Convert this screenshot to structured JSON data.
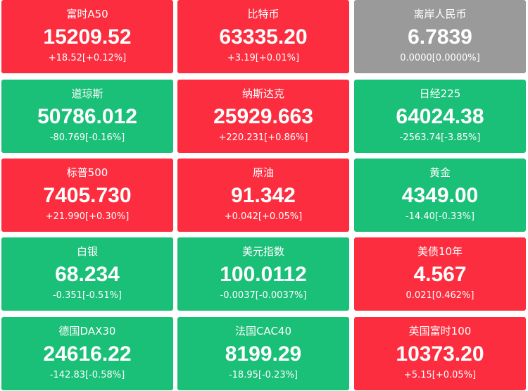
{
  "tiles": [
    {
      "name": "富时A50",
      "price": "15209.52",
      "change": "+18.52[+0.12%]",
      "color": "#fc2d3f"
    },
    {
      "name": "比特币",
      "price": "63335.20",
      "change": "+3.19[+0.01%]",
      "color": "#fc2d3f"
    },
    {
      "name": "离岸人民币",
      "price": "6.7839",
      "change": "0.0000[0.0000%]",
      "color": "#9a9a9a"
    },
    {
      "name": "道琼斯",
      "price": "50786.012",
      "change": "-80.769[-0.16%]",
      "color": "#1abf78"
    },
    {
      "name": "纳斯达克",
      "price": "25929.663",
      "change": "+220.231[+0.86%]",
      "color": "#fc2d3f"
    },
    {
      "name": "日经225",
      "price": "64024.38",
      "change": "-2563.74[-3.85%]",
      "color": "#1abf78"
    },
    {
      "name": "标普500",
      "price": "7405.730",
      "change": "+21.990[+0.30%]",
      "color": "#fc2d3f"
    },
    {
      "name": "原油",
      "price": "91.342",
      "change": "+0.042[+0.05%]",
      "color": "#fc2d3f"
    },
    {
      "name": "黄金",
      "price": "4349.00",
      "change": "-14.40[-0.33%]",
      "color": "#1abf78"
    },
    {
      "name": "白银",
      "price": "68.234",
      "change": "-0.351[-0.51%]",
      "color": "#1abf78"
    },
    {
      "name": "美元指数",
      "price": "100.0112",
      "change": "-0.0037[-0.0037%]",
      "color": "#1abf78"
    },
    {
      "name": "美债10年",
      "price": "4.567",
      "change": "0.021[0.462%]",
      "color": "#fc2d3f"
    },
    {
      "name": "德国DAX30",
      "price": "24616.22",
      "change": "-142.83[-0.58%]",
      "color": "#1abf78"
    },
    {
      "name": "法国CAC40",
      "price": "8199.29",
      "change": "-18.95[-0.23%]",
      "color": "#1abf78"
    },
    {
      "name": "英国富时100",
      "price": "10373.20",
      "change": "+5.15[+0.05%]",
      "color": "#fc2d3f"
    }
  ]
}
